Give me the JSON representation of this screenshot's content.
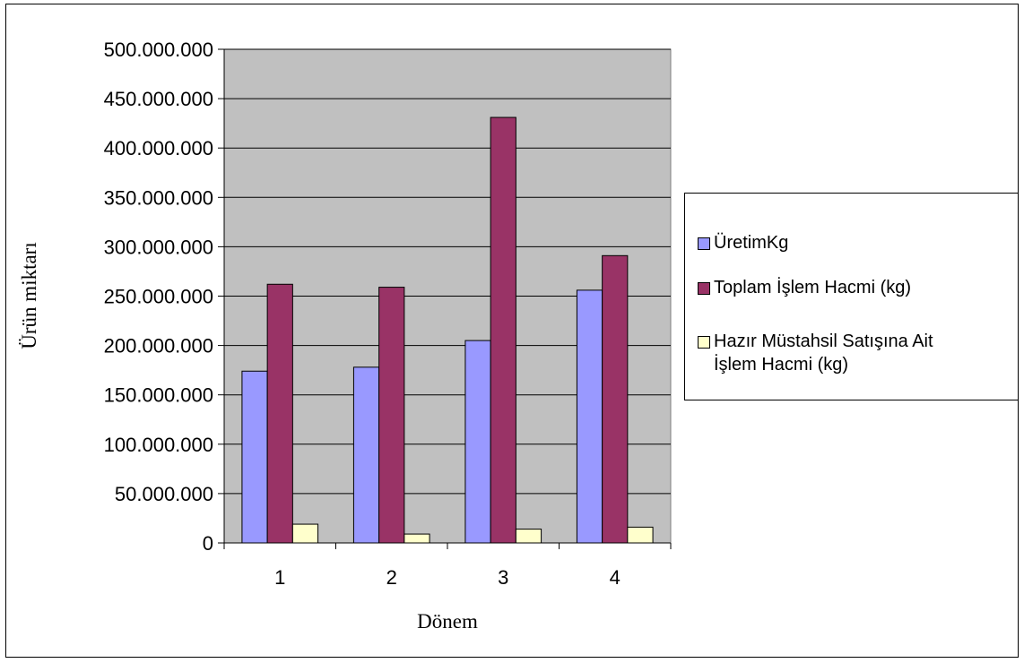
{
  "chart_data": {
    "type": "bar",
    "categories": [
      "1",
      "2",
      "3",
      "4"
    ],
    "series": [
      {
        "name": "ÜretimKg",
        "values": [
          174000000,
          178000000,
          205000000,
          256000000
        ],
        "color": "#9999ff"
      },
      {
        "name": "Toplam İşlem Hacmi (kg)",
        "values": [
          262000000,
          259000000,
          431000000,
          291000000
        ],
        "color": "#993366"
      },
      {
        "name": "Hazır Müstahsil Satışına Ait İşlem Hacmi (kg)",
        "values": [
          19000000,
          9000000,
          14000000,
          16000000
        ],
        "color": "#ffffcc"
      }
    ],
    "yticks": [
      "0",
      "50.000.000",
      "100.000.000",
      "150.000.000",
      "200.000.000",
      "250.000.000",
      "300.000.000",
      "350.000.000",
      "400.000.000",
      "450.000.000",
      "500.000.000"
    ],
    "ylim": [
      0,
      500000000
    ],
    "xlabel": "Dönem",
    "ylabel": "Ürün miktarı",
    "legend_position": "right",
    "grid": true,
    "plot_background": "#c0c0c0"
  }
}
